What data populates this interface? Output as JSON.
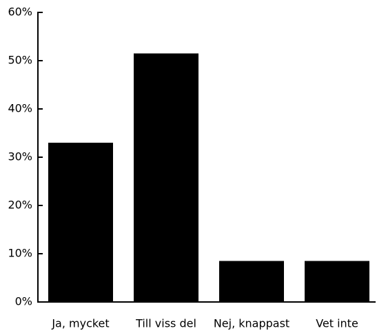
{
  "chart_data": {
    "type": "bar",
    "categories": [
      "Ja, mycket",
      "Till viss del",
      "Nej, knappast",
      "Vet inte"
    ],
    "values": [
      33,
      51.5,
      8.5,
      8.5
    ],
    "color": "#000000",
    "ylim": [
      0,
      60
    ],
    "yticks": [
      {
        "value": 0,
        "label": "0%"
      },
      {
        "value": 10,
        "label": "10%"
      },
      {
        "value": 20,
        "label": "20%"
      },
      {
        "value": 30,
        "label": "30%"
      },
      {
        "value": 40,
        "label": "40%"
      },
      {
        "value": 50,
        "label": "50%"
      },
      {
        "value": 60,
        "label": "60%"
      }
    ],
    "grid": false
  }
}
